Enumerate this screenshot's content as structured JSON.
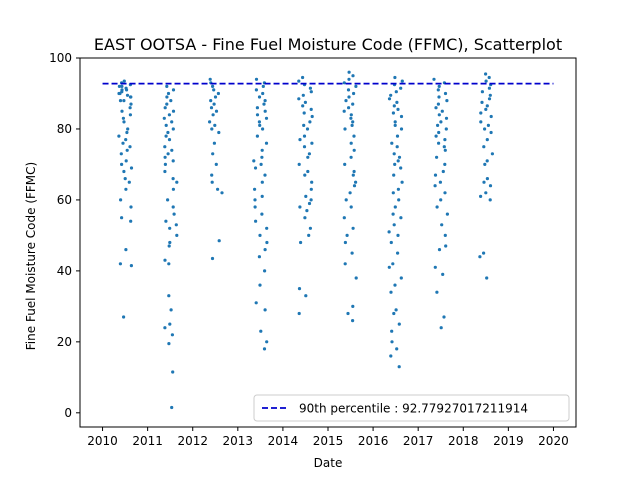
{
  "chart_data": {
    "type": "scatter",
    "title": "EAST OOTSA - Fine Fuel Moisture Code (FFMC), Scatterplot",
    "xlabel": "Date",
    "ylabel": "Fine Fuel Moisture Code (FFMC)",
    "xlim": [
      2009.5,
      2020.5
    ],
    "ylim": [
      -4,
      100
    ],
    "x_ticks": [
      "2010",
      "2011",
      "2012",
      "2013",
      "2014",
      "2015",
      "2016",
      "2017",
      "2018",
      "2019",
      "2020"
    ],
    "y_ticks": [
      "0",
      "20",
      "40",
      "60",
      "80",
      "100"
    ],
    "grid": false,
    "legend": {
      "placement": "lower right",
      "entries": [
        "90th percentile : 92.77927017211914"
      ]
    },
    "colors": {
      "points": "#1f77b4",
      "percentile_line": "#0000cc"
    },
    "percentile_line": {
      "name": "90th percentile : 92.77927017211914",
      "y": 92.77927017211914,
      "x_range": [
        2010.0,
        2020.0
      ]
    },
    "seasons": [
      {
        "year": 2010,
        "x_range": [
          2010.35,
          2010.65
        ],
        "points": [
          93.5,
          92,
          91,
          90,
          89,
          88,
          92.5,
          91.5,
          90.5,
          89.5,
          93,
          92,
          91,
          90,
          89,
          88,
          87,
          86,
          85,
          84,
          83,
          82,
          80,
          79,
          78,
          77,
          76,
          75,
          74,
          73,
          71,
          70,
          69,
          68,
          66,
          65,
          63,
          60,
          58,
          55,
          54,
          46,
          42,
          41.5,
          27
        ]
      },
      {
        "year": 2011,
        "x_range": [
          2011.37,
          2011.65
        ],
        "points": [
          92,
          91,
          90,
          89,
          88,
          87,
          86,
          85,
          84,
          83,
          82,
          81,
          80,
          79,
          78,
          77,
          75,
          74,
          73,
          72,
          71,
          70,
          68,
          66,
          65,
          63,
          60,
          58,
          56,
          54,
          53,
          52,
          50,
          48,
          47,
          43,
          42,
          33,
          29,
          25,
          24,
          22,
          19.5,
          11.5,
          1.5
        ]
      },
      {
        "year": 2012,
        "x_range": [
          2012.37,
          2012.65
        ],
        "points": [
          94,
          93,
          92,
          91,
          90,
          89,
          88,
          87,
          86,
          85,
          84,
          82,
          81,
          80,
          79,
          76,
          73,
          70,
          67,
          65,
          63,
          62,
          48.5,
          43.5
        ]
      },
      {
        "year": 2013,
        "x_range": [
          2013.35,
          2013.65
        ],
        "points": [
          94,
          93,
          92,
          91,
          90,
          89,
          88,
          87,
          86,
          85,
          84,
          83,
          82,
          81,
          80,
          78,
          76,
          74,
          72,
          71,
          70,
          69,
          67,
          65,
          63,
          61,
          60,
          58,
          56,
          54,
          52,
          50,
          48,
          46,
          44,
          40,
          36,
          31,
          29,
          23,
          20,
          18
        ]
      },
      {
        "year": 2014,
        "x_range": [
          2014.35,
          2014.65
        ],
        "points": [
          94.5,
          93.5,
          92.5,
          91.5,
          90.5,
          89.5,
          88.5,
          87.5,
          86.5,
          85.5,
          84.5,
          83.5,
          82,
          81,
          80,
          78,
          77,
          76,
          75,
          73,
          72,
          70,
          68,
          67,
          65,
          63,
          61,
          60,
          59,
          58,
          57,
          55,
          52,
          50,
          48,
          35,
          33,
          28
        ]
      },
      {
        "year": 2015,
        "x_range": [
          2015.35,
          2015.65
        ],
        "points": [
          96,
          95,
          94,
          93,
          92,
          91,
          90,
          89,
          88,
          87,
          86,
          85,
          84,
          83,
          82,
          81,
          80,
          78,
          76,
          74,
          72,
          70,
          68,
          67,
          65,
          64,
          62,
          60,
          58,
          55,
          52,
          50,
          48,
          45,
          42,
          38,
          30,
          28,
          26
        ]
      },
      {
        "year": 2016,
        "x_range": [
          2016.35,
          2016.65
        ],
        "points": [
          94.5,
          93.5,
          92.5,
          91.5,
          90.5,
          89.5,
          88.5,
          87.5,
          86.5,
          85.5,
          84.5,
          83.5,
          82,
          81,
          80,
          78,
          76,
          75,
          73,
          72,
          71,
          70,
          69,
          67,
          65,
          63,
          62,
          60,
          58,
          56,
          55,
          53,
          51,
          50,
          48,
          45,
          42,
          41,
          38,
          36,
          34,
          29,
          28,
          25,
          23,
          20,
          18,
          16,
          13
        ]
      },
      {
        "year": 2017,
        "x_range": [
          2017.35,
          2017.65
        ],
        "points": [
          94,
          93,
          92,
          91,
          90,
          89,
          88,
          87,
          86,
          85,
          84,
          83,
          82,
          81,
          80,
          79,
          78,
          77,
          76,
          75,
          74,
          72,
          70,
          68,
          67,
          65,
          64,
          62,
          60,
          58,
          56,
          53,
          50,
          47,
          46,
          41,
          39,
          34,
          27,
          24
        ]
      },
      {
        "year": 2018,
        "x_range": [
          2018.35,
          2018.65
        ],
        "points": [
          95.5,
          94.5,
          93.5,
          92.5,
          91.5,
          90.5,
          89.5,
          88.5,
          87.5,
          86.5,
          85.5,
          84.5,
          83.5,
          82,
          81,
          80,
          79,
          77,
          75,
          73,
          71,
          70,
          66,
          65,
          64,
          62,
          61,
          60,
          45,
          44,
          38
        ]
      }
    ]
  }
}
